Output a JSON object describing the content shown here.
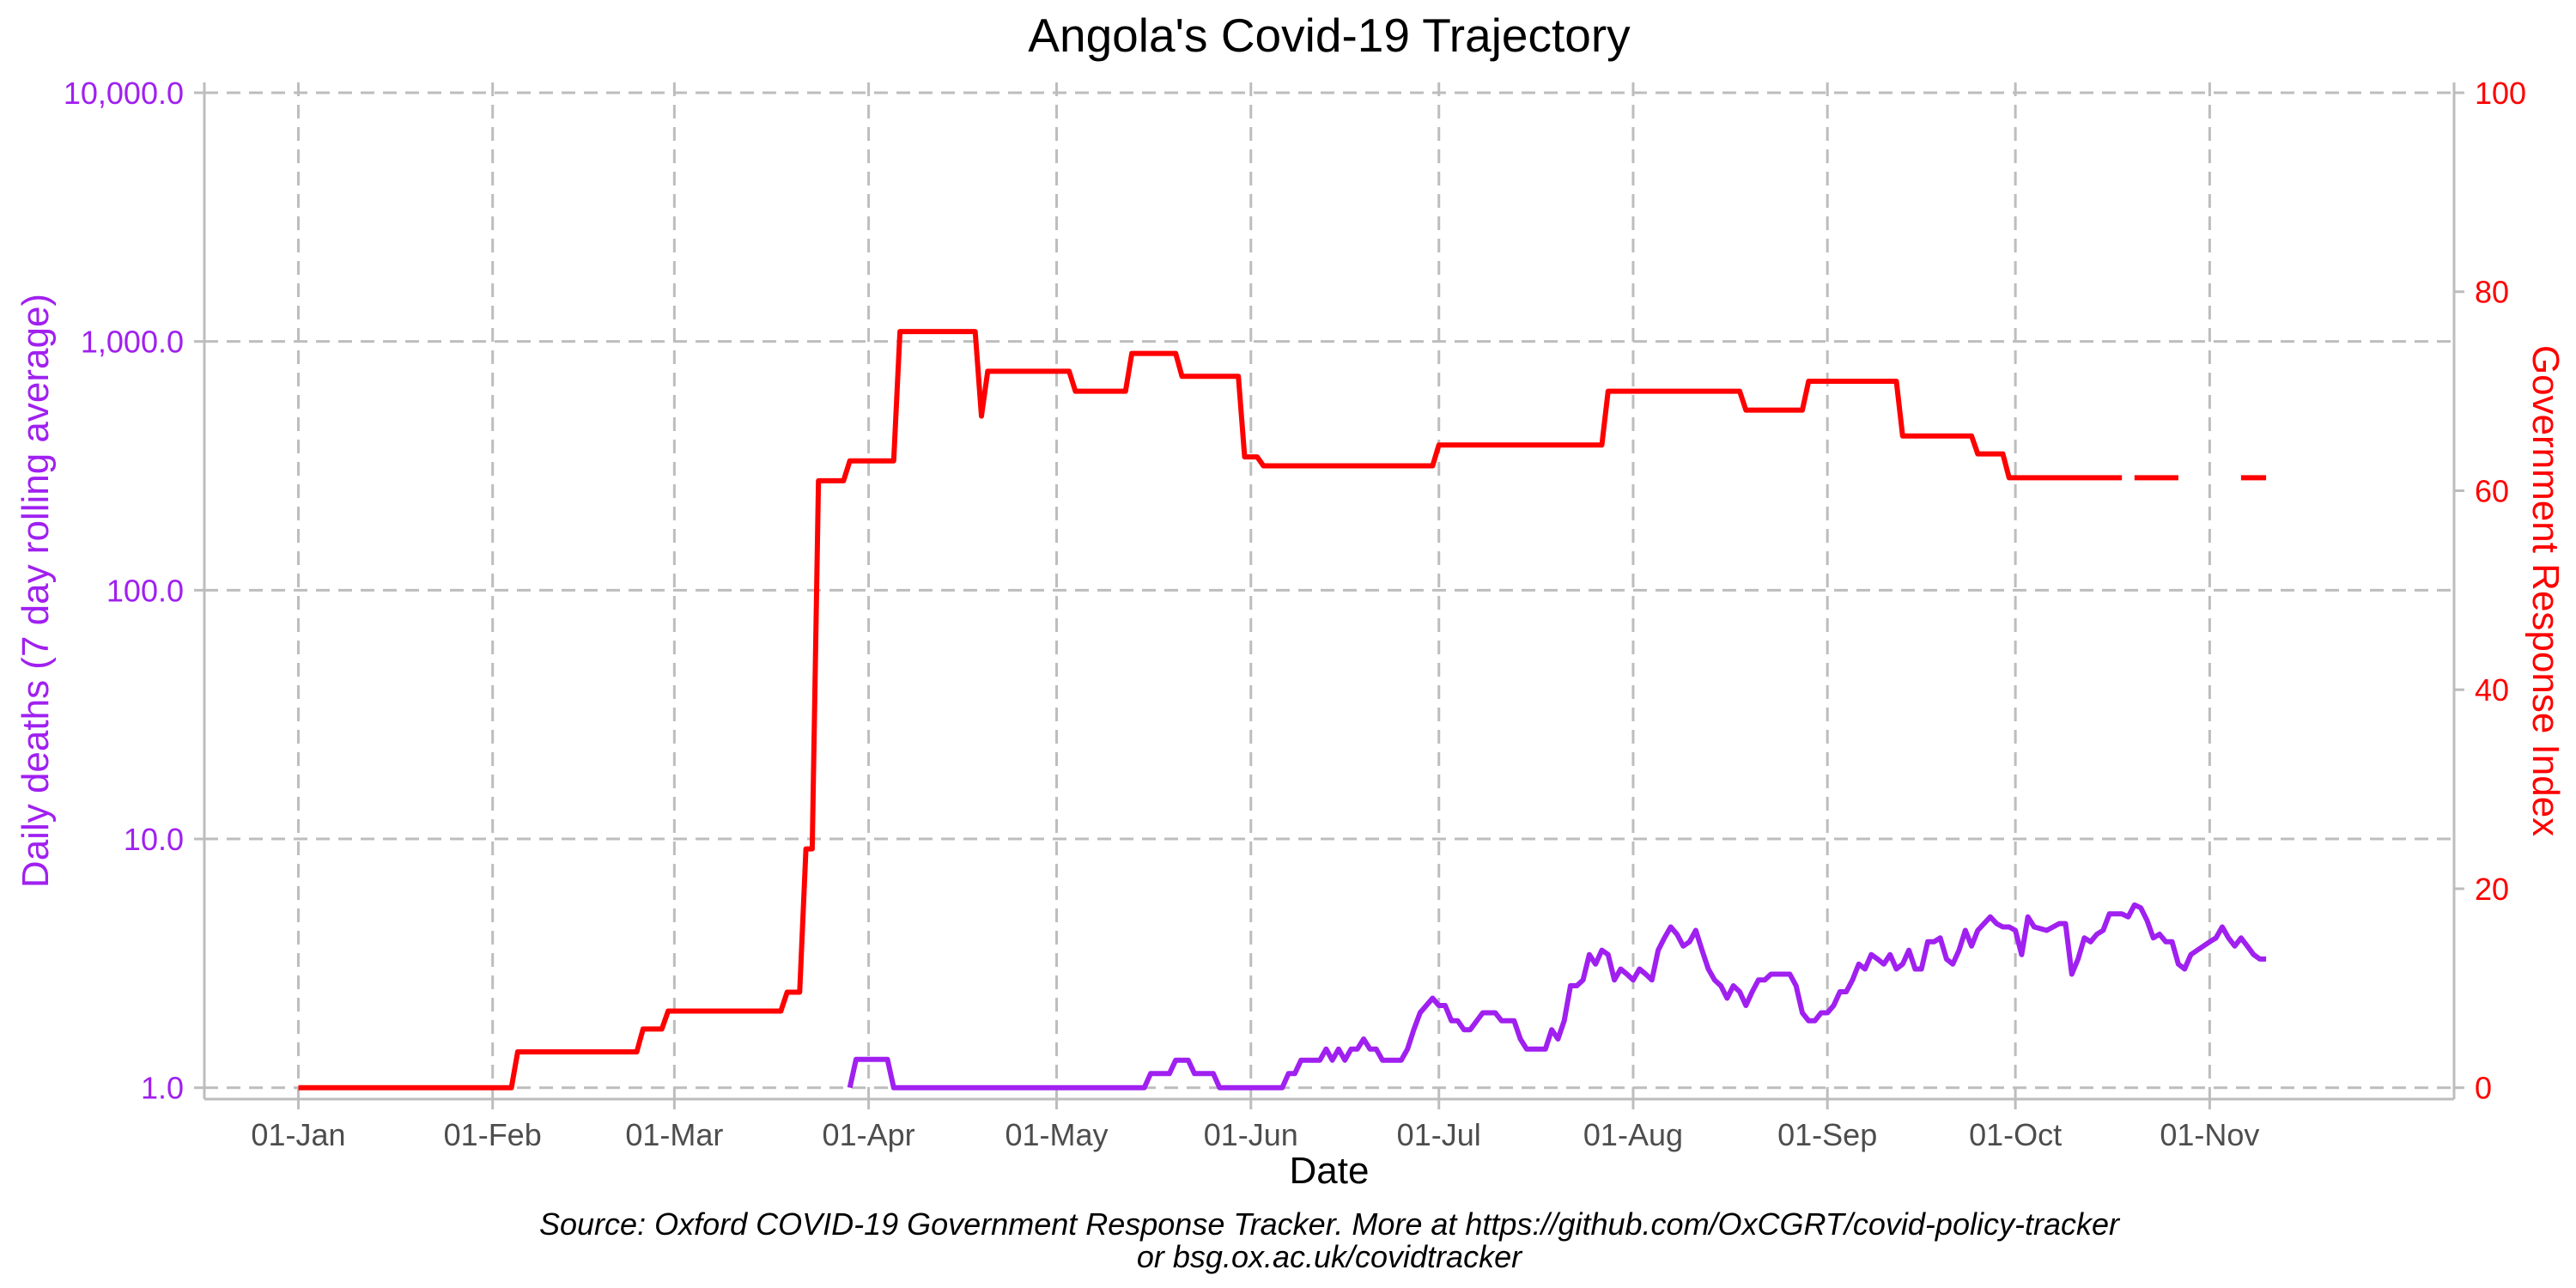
{
  "chart_data": {
    "type": "line",
    "title": "Angola's Covid-19 Trajectory",
    "xlabel": "Date",
    "ylabel_left": "Daily deaths (7 day rolling average)",
    "ylabel_right": "Government Response Index",
    "caption_line1": "Source: Oxford COVID-19 Government Response Tracker. More at https://github.com/OxCGRT/covid-policy-tracker",
    "caption_line2": "or bsg.ox.ac.uk/covidtracker",
    "left_axis": {
      "scale": "log10",
      "range": [
        0.9,
        11000
      ],
      "ticks": [
        1,
        10,
        100,
        1000,
        10000
      ],
      "tick_labels": [
        "1.0",
        "10.0",
        "100.0",
        "1,000.0",
        "10,000.0"
      ]
    },
    "right_axis": {
      "scale": "linear",
      "range": [
        0,
        100
      ],
      "ticks": [
        0,
        20,
        40,
        60,
        80,
        100
      ],
      "tick_labels": [
        "0",
        "20",
        "40",
        "60",
        "80",
        "100"
      ]
    },
    "x_axis": {
      "range": [
        "2019-12-17",
        "2020-12-10"
      ],
      "ticks": [
        "2020-01-01",
        "2020-02-01",
        "2020-03-01",
        "2020-04-01",
        "2020-05-01",
        "2020-06-01",
        "2020-07-01",
        "2020-08-01",
        "2020-09-01",
        "2020-10-01",
        "2020-11-01"
      ],
      "tick_labels": [
        "01-Jan",
        "01-Feb",
        "01-Mar",
        "01-Apr",
        "01-May",
        "01-Jun",
        "01-Jul",
        "01-Aug",
        "01-Sep",
        "01-Oct",
        "01-Nov"
      ]
    },
    "grid": true,
    "colors": {
      "deaths": "#a020f0",
      "response": "#ff0000"
    },
    "series": [
      {
        "axis": "right",
        "points": [
          [
            "2020-01-01",
            0
          ],
          [
            "2020-02-04",
            0
          ],
          [
            "2020-02-05",
            3.6
          ],
          [
            "2020-02-24",
            3.6
          ],
          [
            "2020-02-25",
            5.9
          ],
          [
            "2020-02-28",
            5.9
          ],
          [
            "2020-02-29",
            7.7
          ],
          [
            "2020-03-18",
            7.7
          ],
          [
            "2020-03-19",
            9.6
          ],
          [
            "2020-03-21",
            9.6
          ],
          [
            "2020-03-22",
            24
          ],
          [
            "2020-03-23",
            24
          ],
          [
            "2020-03-24",
            61
          ],
          [
            "2020-03-28",
            61
          ],
          [
            "2020-03-29",
            63
          ],
          [
            "2020-04-05",
            63
          ],
          [
            "2020-04-06",
            76
          ],
          [
            "2020-04-18",
            76
          ],
          [
            "2020-04-19",
            67.5
          ],
          [
            "2020-04-20",
            72
          ],
          [
            "2020-05-03",
            72
          ],
          [
            "2020-05-04",
            70
          ],
          [
            "2020-05-12",
            70
          ],
          [
            "2020-05-13",
            73.8
          ],
          [
            "2020-05-20",
            73.8
          ],
          [
            "2020-05-21",
            71.5
          ],
          [
            "2020-05-30",
            71.5
          ],
          [
            "2020-05-31",
            63.4
          ],
          [
            "2020-06-02",
            63.4
          ],
          [
            "2020-06-03",
            62.5
          ],
          [
            "2020-06-30",
            62.5
          ],
          [
            "2020-07-01",
            64.6
          ],
          [
            "2020-07-27",
            64.6
          ],
          [
            "2020-07-28",
            70
          ],
          [
            "2020-08-18",
            70
          ],
          [
            "2020-08-19",
            68.1
          ],
          [
            "2020-08-28",
            68.1
          ],
          [
            "2020-08-29",
            71
          ],
          [
            "2020-09-12",
            71
          ],
          [
            "2020-09-13",
            65.5
          ],
          [
            "2020-09-24",
            65.5
          ],
          [
            "2020-09-25",
            63.7
          ],
          [
            "2020-09-29",
            63.7
          ],
          [
            "2020-09-30",
            61.3
          ],
          [
            "2020-10-18",
            61.3
          ],
          null,
          [
            "2020-10-20",
            61.3
          ],
          [
            "2020-10-27",
            61.3
          ],
          null,
          [
            "2020-11-06",
            61.3
          ],
          [
            "2020-11-10",
            61.3
          ]
        ]
      },
      {
        "axis": "left",
        "points": [
          [
            "2020-03-29",
            1.0
          ],
          [
            "2020-03-30",
            1.3
          ],
          [
            "2020-04-04",
            1.3
          ],
          [
            "2020-04-05",
            1.0
          ],
          [
            "2020-05-15",
            1.0
          ],
          [
            "2020-05-16",
            1.14
          ],
          [
            "2020-05-19",
            1.14
          ],
          [
            "2020-05-20",
            1.29
          ],
          [
            "2020-05-22",
            1.29
          ],
          [
            "2020-05-23",
            1.14
          ],
          [
            "2020-05-26",
            1.14
          ],
          [
            "2020-05-27",
            1.0
          ],
          [
            "2020-06-06",
            1.0
          ],
          [
            "2020-06-07",
            1.14
          ],
          [
            "2020-06-08",
            1.14
          ],
          [
            "2020-06-09",
            1.29
          ],
          [
            "2020-06-12",
            1.29
          ],
          [
            "2020-06-13",
            1.43
          ],
          [
            "2020-06-14",
            1.29
          ],
          [
            "2020-06-15",
            1.43
          ],
          [
            "2020-06-16",
            1.29
          ],
          [
            "2020-06-17",
            1.43
          ],
          [
            "2020-06-18",
            1.43
          ],
          [
            "2020-06-19",
            1.57
          ],
          [
            "2020-06-20",
            1.43
          ],
          [
            "2020-06-21",
            1.43
          ],
          [
            "2020-06-22",
            1.29
          ],
          [
            "2020-06-25",
            1.29
          ],
          [
            "2020-06-26",
            1.43
          ],
          [
            "2020-06-27",
            1.71
          ],
          [
            "2020-06-28",
            2.0
          ],
          [
            "2020-06-30",
            2.29
          ],
          [
            "2020-07-01",
            2.14
          ],
          [
            "2020-07-02",
            2.14
          ],
          [
            "2020-07-03",
            1.86
          ],
          [
            "2020-07-04",
            1.86
          ],
          [
            "2020-07-05",
            1.71
          ],
          [
            "2020-07-06",
            1.71
          ],
          [
            "2020-07-08",
            2.0
          ],
          [
            "2020-07-10",
            2.0
          ],
          [
            "2020-07-11",
            1.86
          ],
          [
            "2020-07-13",
            1.86
          ],
          [
            "2020-07-14",
            1.57
          ],
          [
            "2020-07-15",
            1.43
          ],
          [
            "2020-07-18",
            1.43
          ],
          [
            "2020-07-19",
            1.71
          ],
          [
            "2020-07-20",
            1.57
          ],
          [
            "2020-07-21",
            1.86
          ],
          [
            "2020-07-22",
            2.57
          ],
          [
            "2020-07-23",
            2.57
          ],
          [
            "2020-07-24",
            2.71
          ],
          [
            "2020-07-25",
            3.43
          ],
          [
            "2020-07-26",
            3.14
          ],
          [
            "2020-07-27",
            3.57
          ],
          [
            "2020-07-28",
            3.43
          ],
          [
            "2020-07-29",
            2.71
          ],
          [
            "2020-07-30",
            3.0
          ],
          [
            "2020-07-31",
            2.86
          ],
          [
            "2020-08-01",
            2.71
          ],
          [
            "2020-08-02",
            3.0
          ],
          [
            "2020-08-03",
            2.86
          ],
          [
            "2020-08-04",
            2.71
          ],
          [
            "2020-08-05",
            3.57
          ],
          [
            "2020-08-06",
            4.0
          ],
          [
            "2020-08-07",
            4.43
          ],
          [
            "2020-08-08",
            4.14
          ],
          [
            "2020-08-09",
            3.71
          ],
          [
            "2020-08-10",
            3.86
          ],
          [
            "2020-08-11",
            4.29
          ],
          [
            "2020-08-12",
            3.57
          ],
          [
            "2020-08-13",
            3.0
          ],
          [
            "2020-08-14",
            2.71
          ],
          [
            "2020-08-15",
            2.57
          ],
          [
            "2020-08-16",
            2.29
          ],
          [
            "2020-08-17",
            2.57
          ],
          [
            "2020-08-18",
            2.43
          ],
          [
            "2020-08-19",
            2.14
          ],
          [
            "2020-08-20",
            2.43
          ],
          [
            "2020-08-21",
            2.71
          ],
          [
            "2020-08-22",
            2.71
          ],
          [
            "2020-08-23",
            2.86
          ],
          [
            "2020-08-26",
            2.86
          ],
          [
            "2020-08-27",
            2.57
          ],
          [
            "2020-08-28",
            2.0
          ],
          [
            "2020-08-29",
            1.86
          ],
          [
            "2020-08-30",
            1.86
          ],
          [
            "2020-08-31",
            2.0
          ],
          [
            "2020-09-01",
            2.0
          ],
          [
            "2020-09-02",
            2.14
          ],
          [
            "2020-09-03",
            2.43
          ],
          [
            "2020-09-04",
            2.43
          ],
          [
            "2020-09-05",
            2.71
          ],
          [
            "2020-09-06",
            3.14
          ],
          [
            "2020-09-07",
            3.0
          ],
          [
            "2020-09-08",
            3.43
          ],
          [
            "2020-09-09",
            3.29
          ],
          [
            "2020-09-10",
            3.14
          ],
          [
            "2020-09-11",
            3.43
          ],
          [
            "2020-09-12",
            3.0
          ],
          [
            "2020-09-13",
            3.14
          ],
          [
            "2020-09-14",
            3.57
          ],
          [
            "2020-09-15",
            3.0
          ],
          [
            "2020-09-16",
            3.0
          ],
          [
            "2020-09-17",
            3.86
          ],
          [
            "2020-09-18",
            3.86
          ],
          [
            "2020-09-19",
            4.0
          ],
          [
            "2020-09-20",
            3.29
          ],
          [
            "2020-09-21",
            3.14
          ],
          [
            "2020-09-22",
            3.57
          ],
          [
            "2020-09-23",
            4.29
          ],
          [
            "2020-09-24",
            3.71
          ],
          [
            "2020-09-25",
            4.29
          ],
          [
            "2020-09-26",
            4.57
          ],
          [
            "2020-09-27",
            4.86
          ],
          [
            "2020-09-28",
            4.57
          ],
          [
            "2020-09-29",
            4.43
          ],
          [
            "2020-09-30",
            4.43
          ],
          [
            "2020-10-01",
            4.29
          ],
          [
            "2020-10-02",
            3.43
          ],
          [
            "2020-10-03",
            4.86
          ],
          [
            "2020-10-04",
            4.43
          ],
          [
            "2020-10-06",
            4.29
          ],
          [
            "2020-10-08",
            4.57
          ],
          [
            "2020-10-09",
            4.57
          ],
          [
            "2020-10-10",
            2.86
          ],
          [
            "2020-10-11",
            3.29
          ],
          [
            "2020-10-12",
            4.0
          ],
          [
            "2020-10-13",
            3.86
          ],
          [
            "2020-10-14",
            4.14
          ],
          [
            "2020-10-15",
            4.29
          ],
          [
            "2020-10-16",
            5.0
          ],
          [
            "2020-10-18",
            5.0
          ],
          [
            "2020-10-19",
            4.86
          ],
          [
            "2020-10-20",
            5.43
          ],
          [
            "2020-10-21",
            5.29
          ],
          [
            "2020-10-22",
            4.71
          ],
          [
            "2020-10-23",
            4.0
          ],
          [
            "2020-10-24",
            4.14
          ],
          [
            "2020-10-25",
            3.86
          ],
          [
            "2020-10-26",
            3.86
          ],
          [
            "2020-10-27",
            3.14
          ],
          [
            "2020-10-28",
            3.0
          ],
          [
            "2020-10-29",
            3.43
          ],
          [
            "2020-11-01",
            3.86
          ],
          [
            "2020-11-02",
            4.0
          ],
          [
            "2020-11-03",
            4.43
          ],
          [
            "2020-11-04",
            4.0
          ],
          [
            "2020-11-05",
            3.71
          ],
          [
            "2020-11-06",
            4.0
          ],
          [
            "2020-11-07",
            3.71
          ],
          [
            "2020-11-08",
            3.43
          ],
          [
            "2020-11-09",
            3.29
          ],
          [
            "2020-11-10",
            3.29
          ]
        ]
      }
    ]
  }
}
